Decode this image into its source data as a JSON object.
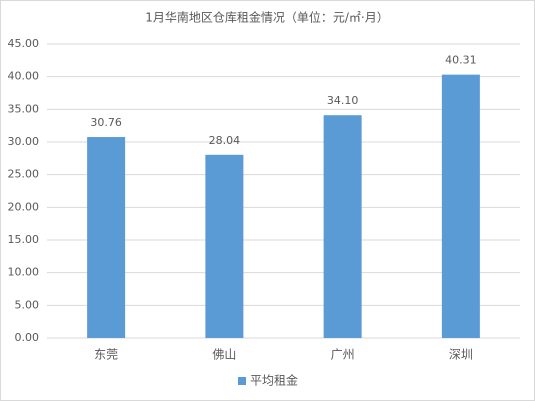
{
  "chart_data": {
    "type": "bar",
    "title": "1月华南地区仓库租金情况（单位：元/㎡·月）",
    "categories": [
      "东莞",
      "佛山",
      "广州",
      "深圳"
    ],
    "series": [
      {
        "name": "平均租金",
        "color": "#5b9bd5",
        "values": [
          30.76,
          28.04,
          34.1,
          40.31
        ],
        "value_labels": [
          "30.76",
          "28.04",
          "34.10",
          "40.31"
        ]
      }
    ],
    "ylim": [
      0,
      45
    ],
    "yticks": [
      {
        "value": 0,
        "label": "0.00"
      },
      {
        "value": 5,
        "label": "5.00"
      },
      {
        "value": 10,
        "label": "10.00"
      },
      {
        "value": 15,
        "label": "15.00"
      },
      {
        "value": 20,
        "label": "20.00"
      },
      {
        "value": 25,
        "label": "25.00"
      },
      {
        "value": 30,
        "label": "30.00"
      },
      {
        "value": 35,
        "label": "35.00"
      },
      {
        "value": 40,
        "label": "40.00"
      },
      {
        "value": 45,
        "label": "45.00"
      }
    ],
    "grid": true,
    "legend": "bottom"
  }
}
